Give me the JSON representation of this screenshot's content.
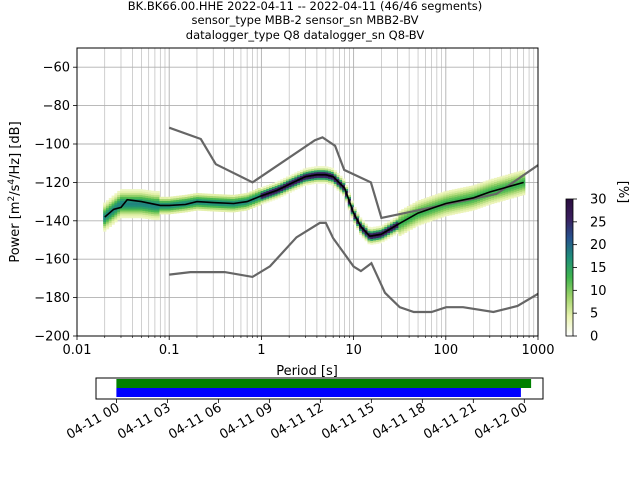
{
  "title": {
    "line1": "BK.BK66.00.HHE   2022-04-11 -- 2022-04-11  (46/46 segments)",
    "line2": "sensor_type MBB-2 sensor_sn MBB2-BV",
    "line3": "datalogger_type Q8 datalogger_sn Q8-BV"
  },
  "chart_data": [
    {
      "type": "heatmap",
      "title": "BK.BK66.00.HHE   2022-04-11 -- 2022-04-11  (46/46 segments)",
      "xlabel": "Period [s]",
      "ylabel": "Power [m²/s⁴/Hz] [dB]",
      "x_scale": "log",
      "xlim": [
        0.01,
        1000
      ],
      "ylim": [
        -200,
        -50
      ],
      "x_ticks": [
        0.01,
        0.1,
        1,
        10,
        100,
        1000
      ],
      "x_tick_labels": [
        "0.01",
        "0.1",
        "1",
        "10",
        "100",
        "1000"
      ],
      "y_ticks": [
        -200,
        -180,
        -160,
        -140,
        -120,
        -100,
        -80,
        -60
      ],
      "y_tick_labels": [
        "−200",
        "−180",
        "−160",
        "−140",
        "−120",
        "−100",
        "−80",
        "−60"
      ],
      "grid": true,
      "colorbar": {
        "label": "[%]",
        "range": [
          0,
          30
        ],
        "ticks": [
          0,
          5,
          10,
          15,
          20,
          25,
          30
        ],
        "tick_labels": [
          "0",
          "5",
          "10",
          "15",
          "20",
          "25",
          "30"
        ],
        "colormap_stops": [
          "#ffffff",
          "#e9f3b0",
          "#9fd36a",
          "#3fb44e",
          "#1f8f7a",
          "#27528e",
          "#3a1f5e",
          "#2a0d3f"
        ]
      },
      "mean_curve": {
        "color": "#000000",
        "x": [
          0.02,
          0.025,
          0.03,
          0.035,
          0.05,
          0.08,
          0.1,
          0.15,
          0.2,
          0.3,
          0.5,
          0.7,
          1,
          1.5,
          2,
          3,
          4,
          5,
          6,
          8,
          10,
          12,
          15,
          20,
          30,
          50,
          100,
          200,
          300,
          500,
          700
        ],
        "y": [
          -138,
          -134,
          -133,
          -129,
          -130,
          -132,
          -132,
          -131.5,
          -130,
          -130.5,
          -131,
          -130,
          -127,
          -124,
          -121,
          -117,
          -116,
          -116,
          -117,
          -123,
          -136,
          -143,
          -148,
          -147,
          -142,
          -136,
          -131,
          -128,
          -125,
          -122,
          -120
        ]
      },
      "density_center": {
        "x": [
          0.02,
          0.03,
          0.04,
          0.05,
          0.07,
          0.1,
          0.15,
          0.2,
          0.3,
          0.5,
          0.7,
          1,
          1.5,
          2,
          3,
          4,
          5,
          6,
          8,
          10,
          12,
          15,
          20,
          30,
          50,
          100,
          200,
          300,
          500,
          700
        ],
        "y": [
          -138,
          -131,
          -131,
          -131,
          -132,
          -132,
          -131,
          -130,
          -130.5,
          -131,
          -130,
          -127,
          -124,
          -121,
          -117,
          -116,
          -116,
          -117,
          -123,
          -136,
          -143,
          -148,
          -147,
          -142,
          -136,
          -131,
          -128,
          -125,
          -122,
          -120
        ]
      },
      "nhnm": {
        "color": "#666666",
        "x": [
          0.1,
          0.22,
          0.32,
          0.8,
          3.8,
          4.6,
          6.3,
          7.9,
          15.4,
          20,
          354.8,
          1000
        ],
        "y": [
          -91.5,
          -97.4,
          -110.5,
          -120,
          -98,
          -96.5,
          -101,
          -113.5,
          -120,
          -138.5,
          -126,
          -111
        ]
      },
      "nlnm": {
        "color": "#666666",
        "x": [
          0.1,
          0.17,
          0.4,
          0.8,
          1.24,
          2.4,
          4.3,
          5,
          6,
          10,
          12,
          15.6,
          21.9,
          31.6,
          45,
          70,
          101,
          154,
          328,
          600,
          1000
        ],
        "y": [
          -168,
          -166.7,
          -166.7,
          -169.2,
          -163.7,
          -148.6,
          -141.1,
          -141.1,
          -149,
          -163.8,
          -166.2,
          -162.1,
          -177.5,
          -185,
          -187.5,
          -187.5,
          -185,
          -185,
          -187.5,
          -184.4,
          -178
        ]
      }
    },
    {
      "type": "bar",
      "title": "",
      "xlabel": "",
      "ylabel": "",
      "x_tick_labels": [
        "04-11 00",
        "04-11 03",
        "04-11 06",
        "04-11 09",
        "04-11 12",
        "04-11 15",
        "04-11 18",
        "04-11 21",
        "04-12 00"
      ],
      "xlim_hours": [
        -1.2,
        25.1
      ],
      "series": [
        {
          "color": "#008000",
          "start_hour": 0,
          "end_hour": 24.4
        },
        {
          "color": "#0000ff",
          "start_hour": 0,
          "end_hour": 23.8
        }
      ]
    }
  ]
}
